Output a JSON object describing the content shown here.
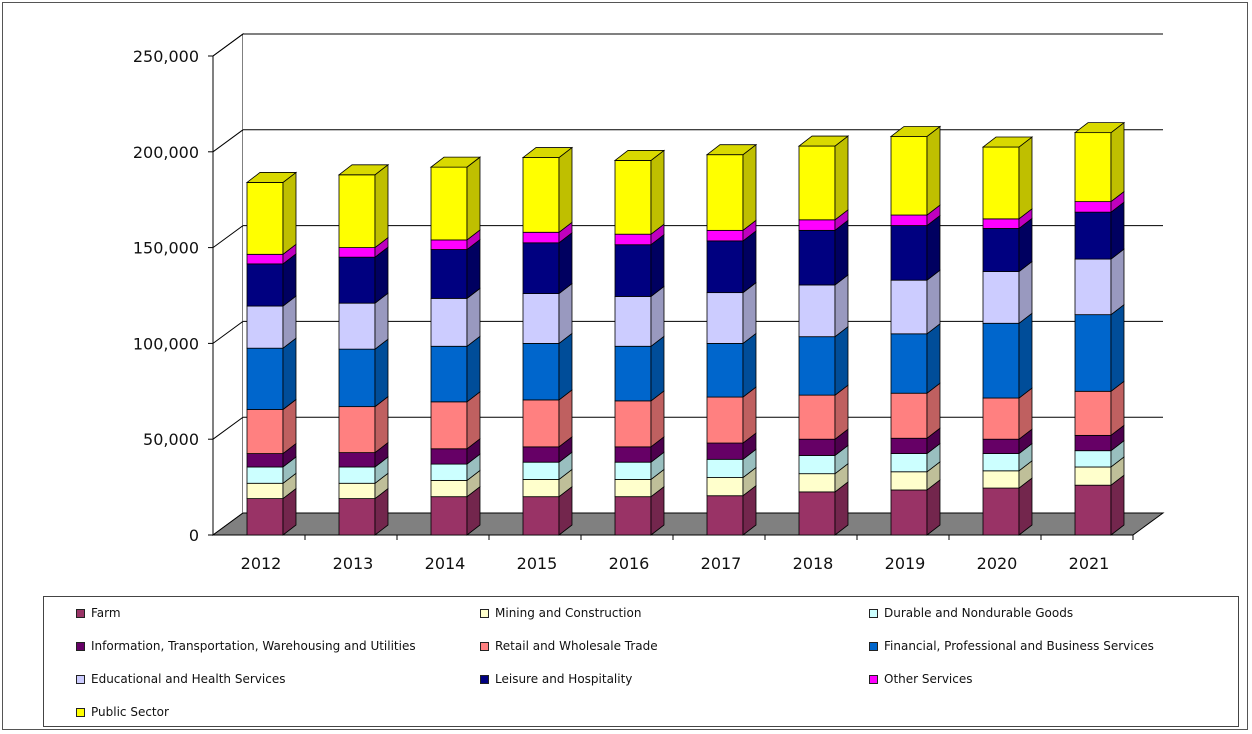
{
  "chart_data": {
    "type": "bar",
    "stacked": true,
    "three_d": true,
    "categories": [
      "2012",
      "2013",
      "2014",
      "2015",
      "2016",
      "2017",
      "2018",
      "2019",
      "2020",
      "2021"
    ],
    "ylim": [
      0,
      250000
    ],
    "yticks": [
      0,
      50000,
      100000,
      150000,
      200000,
      250000
    ],
    "ytick_labels": [
      "0",
      "50,000",
      "100,000",
      "150,000",
      "200,000",
      "250,000"
    ],
    "grid": true,
    "legend_position": "bottom",
    "series": [
      {
        "name": "Farm",
        "color": "#993366",
        "values": [
          19000,
          19000,
          20000,
          20000,
          20000,
          20500,
          22500,
          23500,
          24500,
          26000
        ]
      },
      {
        "name": "Mining and Construction",
        "color": "#FFFFCC",
        "values": [
          8000,
          8000,
          8500,
          9000,
          9000,
          9500,
          9500,
          9500,
          9000,
          9500
        ]
      },
      {
        "name": "Durable and Nondurable Goods",
        "color": "#CCFFFF",
        "values": [
          8500,
          8500,
          8500,
          9000,
          9000,
          9500,
          9500,
          9500,
          9000,
          8500
        ]
      },
      {
        "name": "Information, Transportation, Warehousing and Utilities",
        "color": "#660066",
        "values": [
          7000,
          7500,
          8000,
          8000,
          8000,
          8500,
          8500,
          8000,
          7500,
          8000
        ]
      },
      {
        "name": "Retail and Wholesale Trade",
        "color": "#FF8080",
        "values": [
          23000,
          24000,
          24500,
          24500,
          24000,
          24000,
          23000,
          23500,
          21500,
          23000
        ]
      },
      {
        "name": "Financial, Professional and Business Services",
        "color": "#0066CC",
        "values": [
          32000,
          30000,
          29000,
          29500,
          28500,
          28000,
          30500,
          31000,
          39000,
          40000
        ]
      },
      {
        "name": "Educational and Health Services",
        "color": "#CCCCFF",
        "values": [
          22000,
          24000,
          25000,
          26000,
          26000,
          26500,
          27000,
          28000,
          27000,
          29000
        ]
      },
      {
        "name": "Leisure and Hospitality",
        "color": "#000080",
        "values": [
          22000,
          24000,
          25500,
          26500,
          27000,
          27000,
          28500,
          28500,
          22500,
          24500
        ]
      },
      {
        "name": "Other Services",
        "color": "#FF00FF",
        "values": [
          5000,
          5000,
          5000,
          5500,
          5500,
          5500,
          5500,
          5500,
          5000,
          5500
        ]
      },
      {
        "name": "Public Sector",
        "color": "#FFFF00",
        "values": [
          37500,
          38000,
          38000,
          39000,
          38500,
          39500,
          38500,
          41000,
          37500,
          36000
        ]
      }
    ]
  }
}
